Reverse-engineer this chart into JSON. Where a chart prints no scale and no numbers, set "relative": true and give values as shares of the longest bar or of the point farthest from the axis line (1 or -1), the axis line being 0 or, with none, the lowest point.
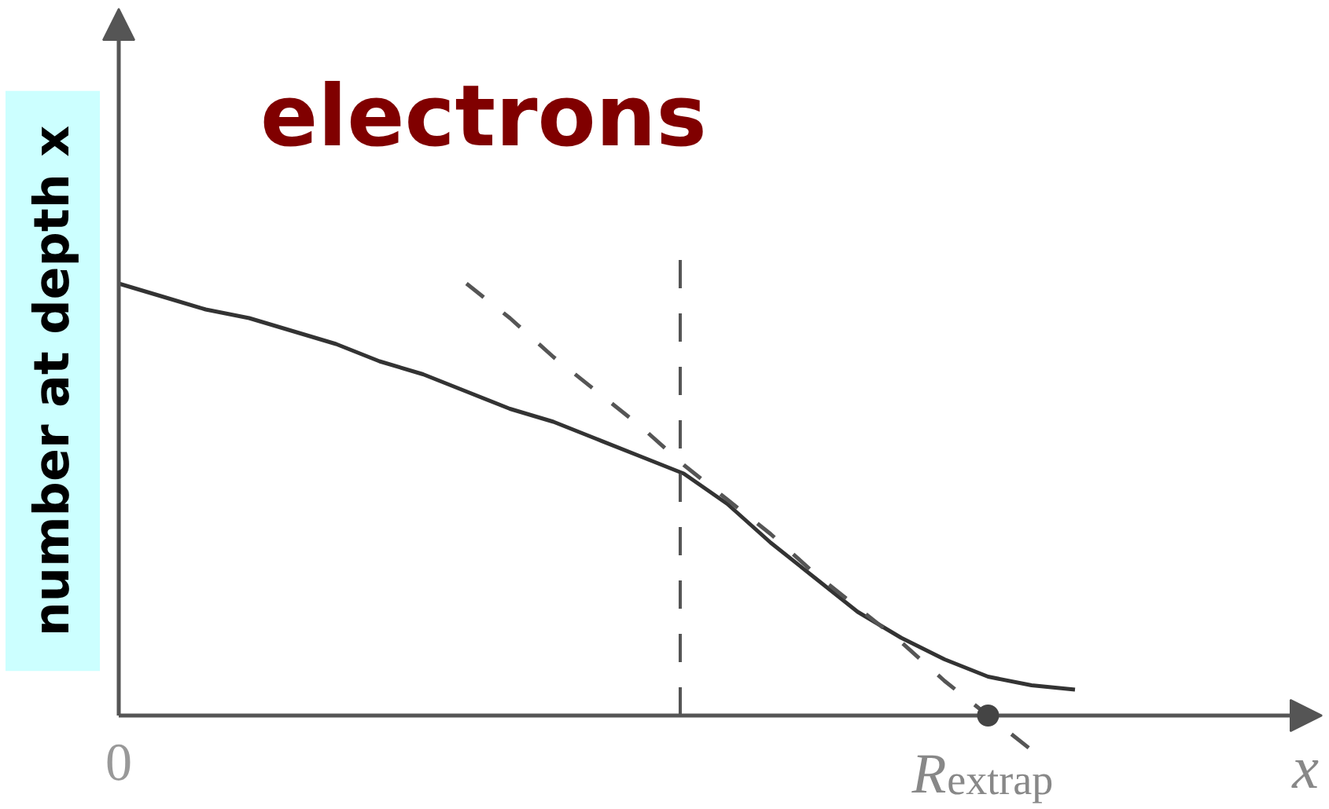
{
  "chart_data": {
    "type": "line",
    "title": "electrons",
    "xlabel": "x",
    "ylabel": "number at depth x",
    "relative": true,
    "categories": [
      "0",
      null,
      null,
      null,
      null,
      null,
      null,
      null,
      null,
      null,
      null,
      null,
      null,
      null,
      null,
      null,
      null,
      null,
      null,
      null,
      "R$_{extrap}$",
      null,
      null
    ],
    "series": [
      {
        "color": "#333333",
        "values": [
          1.0,
          0.97,
          0.94,
          0.92,
          0.89,
          0.86,
          0.82,
          0.79,
          0.75,
          0.71,
          0.68,
          0.64,
          0.6,
          0.56,
          0.49,
          0.4,
          0.32,
          0.24,
          0.18,
          0.13,
          0.09,
          0.07,
          0.06
        ]
      },
      {
        "color": "#555555",
        "line_style": "dashed",
        "values": [
          null,
          null,
          null,
          null,
          null,
          null,
          null,
          null,
          1.0,
          0.92,
          0.83,
          0.75,
          0.67,
          0.58,
          0.5,
          0.42,
          0.33,
          0.25,
          0.17,
          0.08,
          0.0,
          -0.08,
          null
        ]
      },
      {
        "type": "scatter",
        "color": "#444444",
        "marker": "circle",
        "values": [
          null,
          null,
          null,
          null,
          null,
          null,
          null,
          null,
          null,
          null,
          null,
          null,
          null,
          null,
          null,
          null,
          null,
          null,
          null,
          null,
          0,
          null,
          null
        ]
      }
    ]
  }
}
